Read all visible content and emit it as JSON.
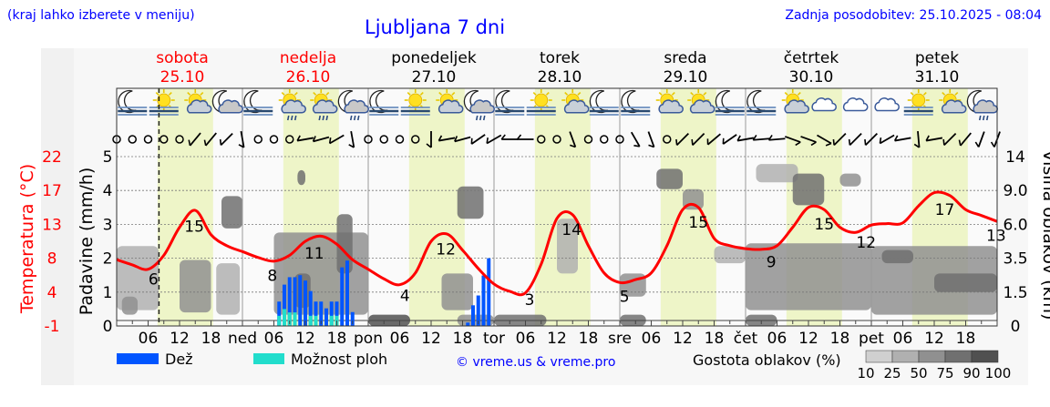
{
  "header": {
    "hint": "(kraj lahko izberete v meniju)",
    "title": "Ljubljana 7 dni",
    "updated": "Zadnja posodobitev: 25.10.2025 - 08:04"
  },
  "days": [
    {
      "name": "sobota",
      "date": "25.10",
      "weekend": true
    },
    {
      "name": "nedelja",
      "date": "26.10",
      "weekend": true
    },
    {
      "name": "ponedeljek",
      "date": "27.10",
      "weekend": false
    },
    {
      "name": "torek",
      "date": "28.10",
      "weekend": false
    },
    {
      "name": "sreda",
      "date": "29.10",
      "weekend": false
    },
    {
      "name": "četrtek",
      "date": "30.10",
      "weekend": false
    },
    {
      "name": "petek",
      "date": "31.10",
      "weekend": false
    }
  ],
  "axes": {
    "temp_title": "Temperatura (°C)",
    "temp_ticks": [
      "-1",
      "4",
      "8",
      "13",
      "17",
      "22"
    ],
    "precip_title": "Padavine (mm/h)",
    "precip_ticks": [
      "0",
      "1",
      "2",
      "3",
      "4",
      "5"
    ],
    "cloud_title": "Višina oblakov (km)",
    "cloud_ticks": [
      "0",
      "1.5",
      "3.5",
      "6.0",
      "9.0",
      "14"
    ],
    "hour_labels": [
      "06",
      "12",
      "18"
    ],
    "day_abbr": [
      "",
      "ned",
      "pon",
      "tor",
      "sre",
      "čet",
      "pet"
    ]
  },
  "legend": {
    "rain": "Dež",
    "showers": "Možnost ploh",
    "credit": "© vreme.us & vreme.pro",
    "cloud_density": "Gostota oblakov (%)",
    "density_ticks": [
      "10",
      "25",
      "50",
      "75",
      "90",
      "100"
    ]
  },
  "colors": {
    "title": "#0000ff",
    "weekend": "#ff0000",
    "temperature": "#ff0000",
    "rain": "#0055ff",
    "showers": "#22ddcc",
    "daylight": "#eef5c8",
    "density": [
      "#d0d0d0",
      "#b0b0b0",
      "#909090",
      "#707070",
      "#505050"
    ]
  },
  "chart_data": {
    "type": "line",
    "current_time": "25.10 08:04",
    "temperature": {
      "unit": "°C",
      "step_hours": 3,
      "values": [
        8.0,
        7.3,
        6.7,
        8.6,
        12.4,
        14.7,
        11.4,
        9.9,
        9.1,
        8.3,
        7.8,
        8.6,
        10.5,
        11.2,
        10.1,
        8.0,
        6.7,
        5.4,
        4.6,
        6.2,
        10.5,
        11.5,
        9.3,
        6.8,
        4.7,
        3.7,
        3.5,
        7.4,
        13.6,
        14.1,
        9.9,
        6.2,
        4.9,
        5.3,
        6.2,
        9.9,
        14.8,
        15.1,
        10.9,
        9.9,
        9.5,
        9.4,
        9.9,
        12.4,
        15.1,
        14.8,
        12.4,
        11.7,
        12.7,
        12.9,
        13.0,
        15.3,
        17.1,
        16.7,
        14.8,
        14.0,
        13.2
      ],
      "extremes": [
        {
          "hour": 7,
          "label": "6"
        },
        {
          "hour": 14.8,
          "label": "15"
        },
        {
          "hour": 29.7,
          "label": "8"
        },
        {
          "hour": 37.7,
          "label": "11"
        },
        {
          "hour": 55,
          "label": "4"
        },
        {
          "hour": 62.8,
          "label": "12"
        },
        {
          "hour": 78.8,
          "label": "3"
        },
        {
          "hour": 86.8,
          "label": "14"
        },
        {
          "hour": 96.9,
          "label": "5"
        },
        {
          "hour": 111,
          "label": "15"
        },
        {
          "hour": 124.9,
          "label": "9"
        },
        {
          "hour": 135,
          "label": "15"
        },
        {
          "hour": 143,
          "label": "12"
        },
        {
          "hour": 158,
          "label": "17"
        },
        {
          "hour": 167.8,
          "label": "13"
        }
      ]
    },
    "precipitation": {
      "unit": "mm/h",
      "bars": [
        {
          "hour": 31,
          "rain": 0.72,
          "showers": 0.3
        },
        {
          "hour": 32,
          "rain": 1.22,
          "showers": 0.5
        },
        {
          "hour": 33,
          "rain": 1.44,
          "showers": 0.4
        },
        {
          "hour": 34,
          "rain": 1.44,
          "showers": 0.4
        },
        {
          "hour": 35,
          "rain": 1.5,
          "showers": 0
        },
        {
          "hour": 36,
          "rain": 1.34,
          "showers": 0
        },
        {
          "hour": 37,
          "rain": 1.03,
          "showers": 0.3
        },
        {
          "hour": 38,
          "rain": 0.72,
          "showers": 0.3
        },
        {
          "hour": 39,
          "rain": 0.72,
          "showers": 0
        },
        {
          "hour": 40,
          "rain": 0.52,
          "showers": 0
        },
        {
          "hour": 41,
          "rain": 0.72,
          "showers": 0.3
        },
        {
          "hour": 42,
          "rain": 0.72,
          "showers": 0.3
        },
        {
          "hour": 43,
          "rain": 1.73,
          "showers": 0
        },
        {
          "hour": 44,
          "rain": 1.93,
          "showers": 0
        },
        {
          "hour": 45,
          "rain": 0.41,
          "showers": 0
        },
        {
          "hour": 67,
          "rain": 0.1,
          "showers": 0
        },
        {
          "hour": 68,
          "rain": 0.61,
          "showers": 0
        },
        {
          "hour": 69,
          "rain": 0.9,
          "showers": 0
        },
        {
          "hour": 70,
          "rain": 1.49,
          "showers": 0
        },
        {
          "hour": 71,
          "rain": 2.0,
          "showers": 0
        }
      ]
    },
    "clouds": [
      {
        "from": 0,
        "to": 8,
        "km": [
          0.7,
          4.4
        ],
        "density": 25
      },
      {
        "from": 1,
        "to": 4,
        "km": [
          0.5,
          1.3
        ],
        "density": 50
      },
      {
        "from": 12,
        "to": 18,
        "km": [
          0.6,
          3.4
        ],
        "density": 50
      },
      {
        "from": 19,
        "to": 23.5,
        "km": [
          0.5,
          3.2
        ],
        "density": 25
      },
      {
        "from": 20,
        "to": 24,
        "km": [
          5.7,
          8.5
        ],
        "density": 75
      },
      {
        "from": 30,
        "to": 48,
        "km": [
          0.5,
          5.4
        ],
        "density": 50
      },
      {
        "from": 34,
        "to": 37,
        "km": [
          0.8,
          2.6
        ],
        "density": 75
      },
      {
        "from": 34.5,
        "to": 36,
        "km": [
          9.8,
          12
        ],
        "density": 75
      },
      {
        "from": 42,
        "to": 45,
        "km": [
          2.6,
          6.9
        ],
        "density": 75
      },
      {
        "from": 48,
        "to": 56,
        "km": [
          0,
          0.5
        ],
        "density": 90
      },
      {
        "from": 62,
        "to": 68,
        "km": [
          0.7,
          2.6
        ],
        "density": 50
      },
      {
        "from": 65,
        "to": 70,
        "km": [
          6.5,
          9.6
        ],
        "density": 75
      },
      {
        "from": 65,
        "to": 72,
        "km": [
          0,
          0.5
        ],
        "density": 50
      },
      {
        "from": 72,
        "to": 82,
        "km": [
          0,
          0.5
        ],
        "density": 75
      },
      {
        "from": 84,
        "to": 88,
        "km": [
          2.6,
          6.5
        ],
        "density": 25
      },
      {
        "from": 96,
        "to": 101,
        "km": [
          0,
          0.5
        ],
        "density": 75
      },
      {
        "from": 96,
        "to": 101,
        "km": [
          1.3,
          2.6
        ],
        "density": 50
      },
      {
        "from": 103,
        "to": 108,
        "km": [
          9.2,
          12.2
        ],
        "density": 75
      },
      {
        "from": 108,
        "to": 112,
        "km": [
          7.3,
          9.2
        ],
        "density": 50
      },
      {
        "from": 114,
        "to": 120,
        "km": [
          3.2,
          4.4
        ],
        "density": 25
      },
      {
        "from": 120,
        "to": 126,
        "km": [
          0,
          0.5
        ],
        "density": 75
      },
      {
        "from": 120,
        "to": 144,
        "km": [
          0.7,
          4.6
        ],
        "density": 50
      },
      {
        "from": 122,
        "to": 130,
        "km": [
          10.2,
          12.9
        ],
        "density": 25
      },
      {
        "from": 129,
        "to": 135,
        "km": [
          7.7,
          11.5
        ],
        "density": 75
      },
      {
        "from": 138,
        "to": 142,
        "km": [
          9.6,
          11.5
        ],
        "density": 50
      },
      {
        "from": 144,
        "to": 168,
        "km": [
          0.5,
          4.4
        ],
        "density": 50
      },
      {
        "from": 146,
        "to": 152,
        "km": [
          3.2,
          4.1
        ],
        "density": 75
      },
      {
        "from": 156,
        "to": 168,
        "km": [
          1.5,
          2.6
        ],
        "density": 75
      }
    ],
    "weather_icons": [
      "moon-fog",
      "sun-fog",
      "sun-cloud",
      "moon-cloud",
      "moon-fog",
      "sun-cloud-rain",
      "sun-cloud-rain",
      "moon-cloud-rain",
      "moon-fog",
      "sun-fog",
      "sun-cloud",
      "moon-cloud-rain",
      "moon-fog",
      "sun-fog",
      "sun-cloud",
      "moon-fog",
      "moon-fog",
      "sun-cloud",
      "sun-cloud",
      "moon-fog",
      "moon-fog",
      "sun-cloud",
      "cloud",
      "cloud",
      "cloud",
      "sun-fog",
      "sun-cloud",
      "moon-cloud-rain"
    ],
    "wind_step_hours": 3,
    "wind_directions": [
      null,
      null,
      null,
      null,
      null,
      40,
      40,
      45,
      -10,
      null,
      null,
      null,
      80,
      75,
      60,
      -10,
      null,
      null,
      null,
      null,
      0,
      80,
      75,
      55,
      60,
      90,
      90,
      null,
      null,
      -20,
      null,
      null,
      null,
      -30,
      -20,
      null,
      45,
      45,
      50,
      55,
      80,
      85,
      85,
      -70,
      -70,
      -60,
      45,
      45,
      45,
      60,
      80,
      -5,
      80,
      45,
      40,
      20,
      20
    ]
  }
}
